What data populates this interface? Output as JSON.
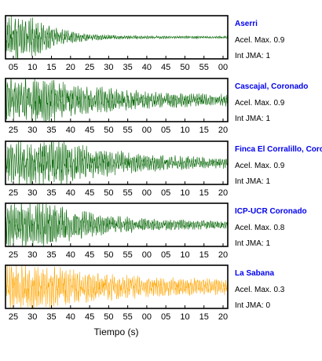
{
  "chart_data": {
    "type": "line",
    "xlabel": "Tiempo (s)",
    "grid": false,
    "colors": {
      "station_name": "#0000ee",
      "trace_strong": "#006400",
      "trace_weak": "#ffa500"
    },
    "panels": [
      {
        "station": "Aserri",
        "acel_label": "Acel. Max. 0.9",
        "int_label": "Int JMA: 1",
        "acel_max": 0.9,
        "int_jma": 1,
        "color": "#006400",
        "tick_labels": [
          "05",
          "10",
          "15",
          "20",
          "25",
          "30",
          "35",
          "40",
          "45",
          "50",
          "55",
          "00"
        ],
        "envelope": {
          "onset": 0.0,
          "peak_end": 0.12,
          "decay": 0.12,
          "floor": 0.06
        }
      },
      {
        "station": "Cascajal, Coronado",
        "acel_label": "Acel. Max. 0.9",
        "int_label": "Int JMA: 1",
        "acel_max": 0.9,
        "int_jma": 1,
        "color": "#006400",
        "tick_labels": [
          "25",
          "30",
          "35",
          "40",
          "45",
          "50",
          "55",
          "00",
          "05",
          "10",
          "15",
          "20"
        ],
        "envelope": {
          "onset": 0.0,
          "peak_end": 0.2,
          "decay": 0.3,
          "floor": 0.22
        }
      },
      {
        "station": "Finca El Corralillo, Corcnado",
        "acel_label": "Acel. Max. 0.9",
        "int_label": "Int JMA: 1",
        "acel_max": 0.9,
        "int_jma": 1,
        "color": "#006400",
        "tick_labels": [
          "25",
          "30",
          "35",
          "40",
          "45",
          "50",
          "55",
          "00",
          "05",
          "10",
          "15",
          "20"
        ],
        "envelope": {
          "onset": 0.0,
          "peak_end": 0.25,
          "decay": 0.3,
          "floor": 0.18
        }
      },
      {
        "station": "ICP-UCR Coronado",
        "acel_label": "Acel. Max. 0.8",
        "int_label": "Int JMA: 1",
        "acel_max": 0.8,
        "int_jma": 1,
        "color": "#006400",
        "tick_labels": [
          "25",
          "30",
          "35",
          "40",
          "45",
          "50",
          "55",
          "00",
          "05",
          "10",
          "15",
          "20"
        ],
        "envelope": {
          "onset": 0.0,
          "peak_end": 0.2,
          "decay": 0.25,
          "floor": 0.15
        }
      },
      {
        "station": "La Sabana",
        "acel_label": "Acel. Max. 0.3",
        "int_label": "Int JMA: 0",
        "acel_max": 0.3,
        "int_jma": 0,
        "color": "#ffa500",
        "tick_labels": [
          "25",
          "30",
          "35",
          "40",
          "45",
          "50",
          "55",
          "00",
          "05",
          "10",
          "15",
          "20"
        ],
        "envelope": {
          "onset": 0.0,
          "peak_end": 0.18,
          "decay": 0.35,
          "floor": 0.3
        }
      }
    ]
  }
}
